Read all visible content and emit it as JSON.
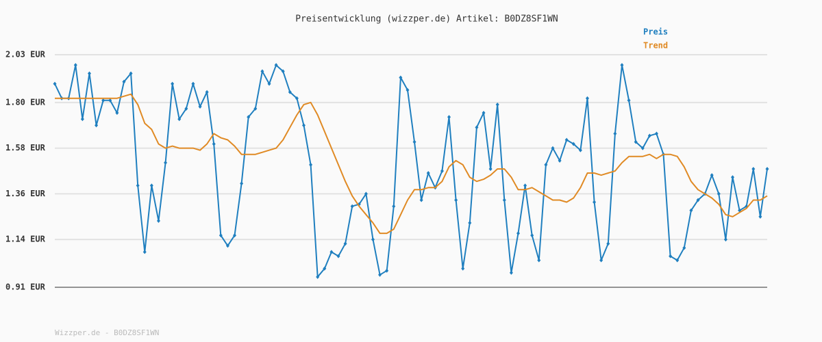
{
  "chart_data": {
    "type": "line",
    "title": "Preisentwicklung (wizzper.de) Artikel: B0DZ8SF1WN",
    "footer": "Wizzper.de - B0DZ8SF1WN",
    "ylim": [
      0.91,
      2.03
    ],
    "yticks": [
      {
        "value": 0.91,
        "label": "0.91 EUR"
      },
      {
        "value": 1.14,
        "label": "1.14 EUR"
      },
      {
        "value": 1.36,
        "label": "1.36 EUR"
      },
      {
        "value": 1.58,
        "label": "1.58 EUR"
      },
      {
        "value": 1.8,
        "label": "1.80 EUR"
      },
      {
        "value": 2.03,
        "label": "2.03 EUR"
      }
    ],
    "grid": true,
    "legend": "top-right",
    "series": [
      {
        "name": "Preis",
        "color": "#1f7fbf",
        "markers": true,
        "values": [
          1.89,
          1.82,
          1.82,
          1.98,
          1.72,
          1.94,
          1.69,
          1.81,
          1.81,
          1.75,
          1.9,
          1.94,
          1.4,
          1.08,
          1.4,
          1.23,
          1.51,
          1.89,
          1.72,
          1.77,
          1.89,
          1.78,
          1.85,
          1.6,
          1.16,
          1.11,
          1.16,
          1.41,
          1.73,
          1.77,
          1.95,
          1.89,
          1.98,
          1.95,
          1.85,
          1.82,
          1.69,
          1.5,
          0.96,
          1.0,
          1.08,
          1.06,
          1.12,
          1.3,
          1.31,
          1.36,
          1.14,
          0.97,
          0.99,
          1.3,
          1.92,
          1.86,
          1.61,
          1.33,
          1.46,
          1.39,
          1.47,
          1.73,
          1.33,
          1.0,
          1.22,
          1.68,
          1.75,
          1.48,
          1.79,
          1.33,
          0.98,
          1.17,
          1.4,
          1.16,
          1.04,
          1.5,
          1.58,
          1.52,
          1.62,
          1.6,
          1.57,
          1.82,
          1.32,
          1.04,
          1.12,
          1.65,
          1.98,
          1.81,
          1.61,
          1.58,
          1.64,
          1.65,
          1.55,
          1.06,
          1.04,
          1.1,
          1.28,
          1.33,
          1.36,
          1.45,
          1.36,
          1.14,
          1.44,
          1.28,
          1.3,
          1.48,
          1.25,
          1.48
        ]
      },
      {
        "name": "Trend",
        "color": "#e08a24",
        "markers": false,
        "values": [
          1.82,
          1.82,
          1.82,
          1.82,
          1.82,
          1.82,
          1.82,
          1.82,
          1.82,
          1.82,
          1.83,
          1.84,
          1.79,
          1.7,
          1.67,
          1.6,
          1.58,
          1.59,
          1.58,
          1.58,
          1.58,
          1.57,
          1.6,
          1.65,
          1.63,
          1.62,
          1.59,
          1.55,
          1.55,
          1.55,
          1.56,
          1.57,
          1.58,
          1.62,
          1.68,
          1.74,
          1.79,
          1.8,
          1.74,
          1.66,
          1.58,
          1.5,
          1.42,
          1.35,
          1.3,
          1.26,
          1.22,
          1.17,
          1.17,
          1.19,
          1.26,
          1.33,
          1.38,
          1.38,
          1.39,
          1.39,
          1.42,
          1.49,
          1.52,
          1.5,
          1.44,
          1.42,
          1.43,
          1.45,
          1.48,
          1.48,
          1.44,
          1.38,
          1.38,
          1.39,
          1.37,
          1.35,
          1.33,
          1.33,
          1.32,
          1.34,
          1.39,
          1.46,
          1.46,
          1.45,
          1.46,
          1.47,
          1.51,
          1.54,
          1.54,
          1.54,
          1.55,
          1.53,
          1.55,
          1.55,
          1.54,
          1.49,
          1.42,
          1.38,
          1.36,
          1.34,
          1.31,
          1.26,
          1.25,
          1.27,
          1.29,
          1.33,
          1.33,
          1.35
        ]
      }
    ]
  }
}
